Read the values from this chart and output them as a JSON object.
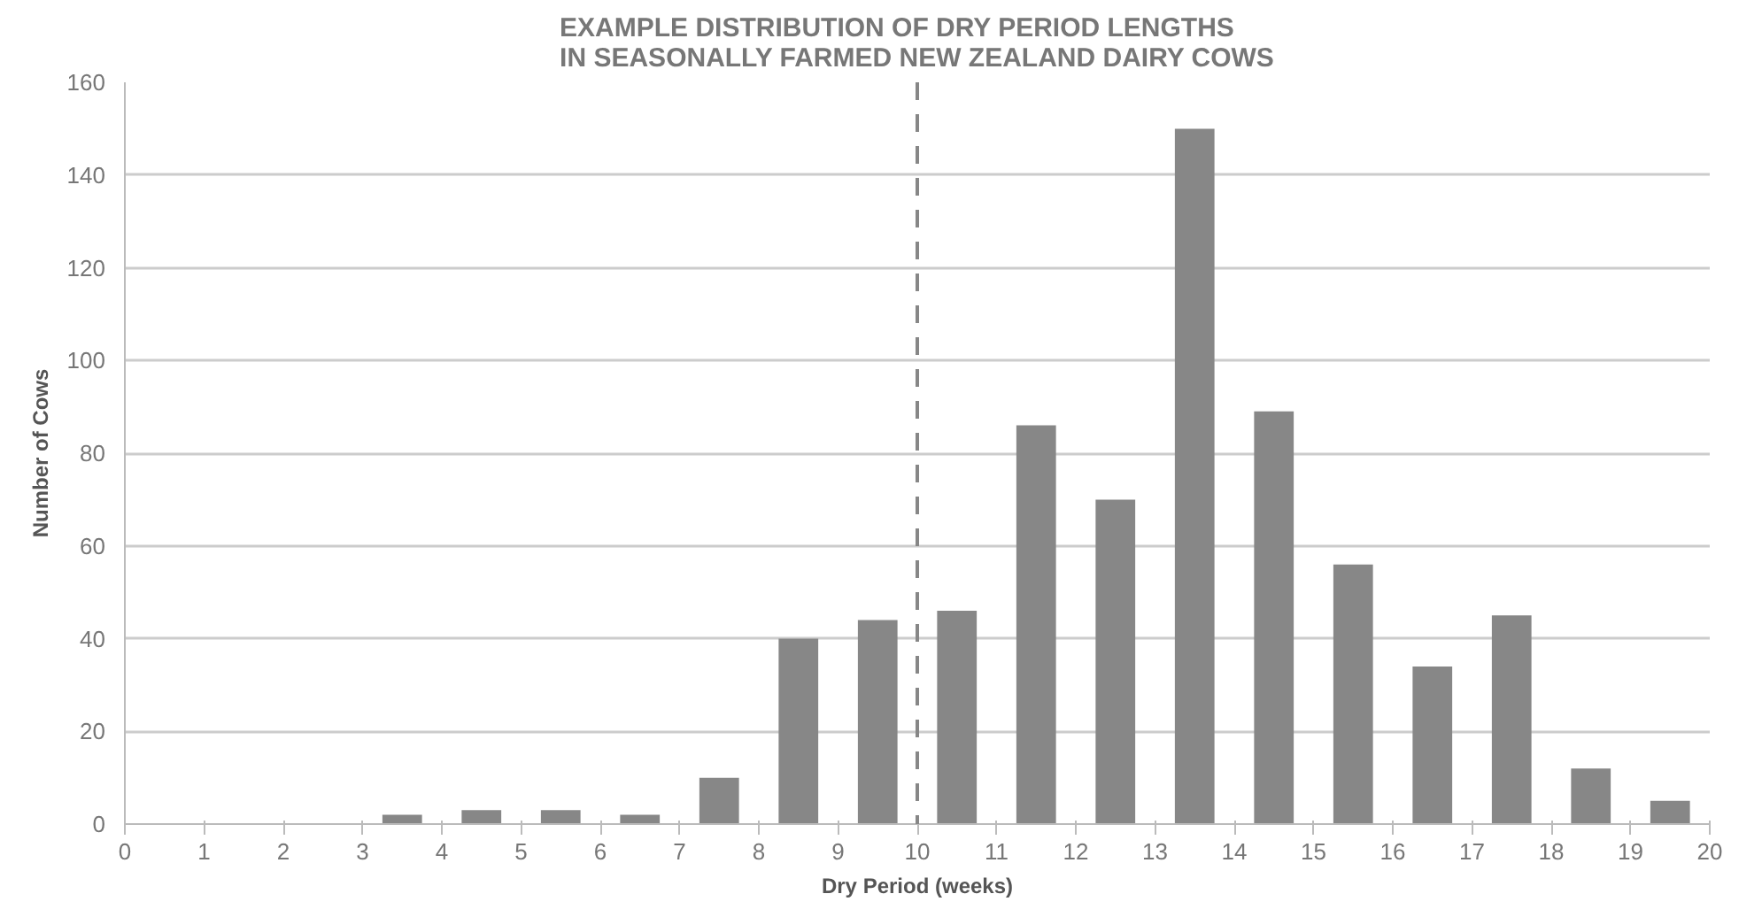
{
  "chart_data": {
    "type": "bar",
    "title": "EXAMPLE DISTRIBUTION OF DRY PERIOD LENGTHS\nIN SEASONALLY FARMED NEW ZEALAND DAIRY COWS",
    "xlabel": "Dry Period (weeks)",
    "ylabel": "Number of Cows",
    "x": [
      3.5,
      4.5,
      5.5,
      6.5,
      7.5,
      8.5,
      9.5,
      10.5,
      11.5,
      12.5,
      13.5,
      14.5,
      15.5,
      16.5,
      17.5,
      18.5,
      19.5
    ],
    "values": [
      2,
      3,
      3,
      2,
      10,
      40,
      44,
      46,
      86,
      70,
      150,
      89,
      56,
      34,
      45,
      12,
      5
    ],
    "color": "#878787",
    "xlim": [
      0,
      20
    ],
    "xticks": [
      0,
      1,
      2,
      3,
      4,
      5,
      6,
      7,
      8,
      9,
      10,
      11,
      12,
      13,
      14,
      15,
      16,
      17,
      18,
      19,
      20
    ],
    "ylim": [
      0,
      160
    ],
    "yticks": [
      0,
      20,
      40,
      60,
      80,
      100,
      120,
      140,
      160
    ],
    "grid": "y",
    "ref_lines": [
      {
        "axis": "x",
        "value": 10,
        "label": null,
        "color": "#878787",
        "line_style": "dashed"
      }
    ]
  }
}
